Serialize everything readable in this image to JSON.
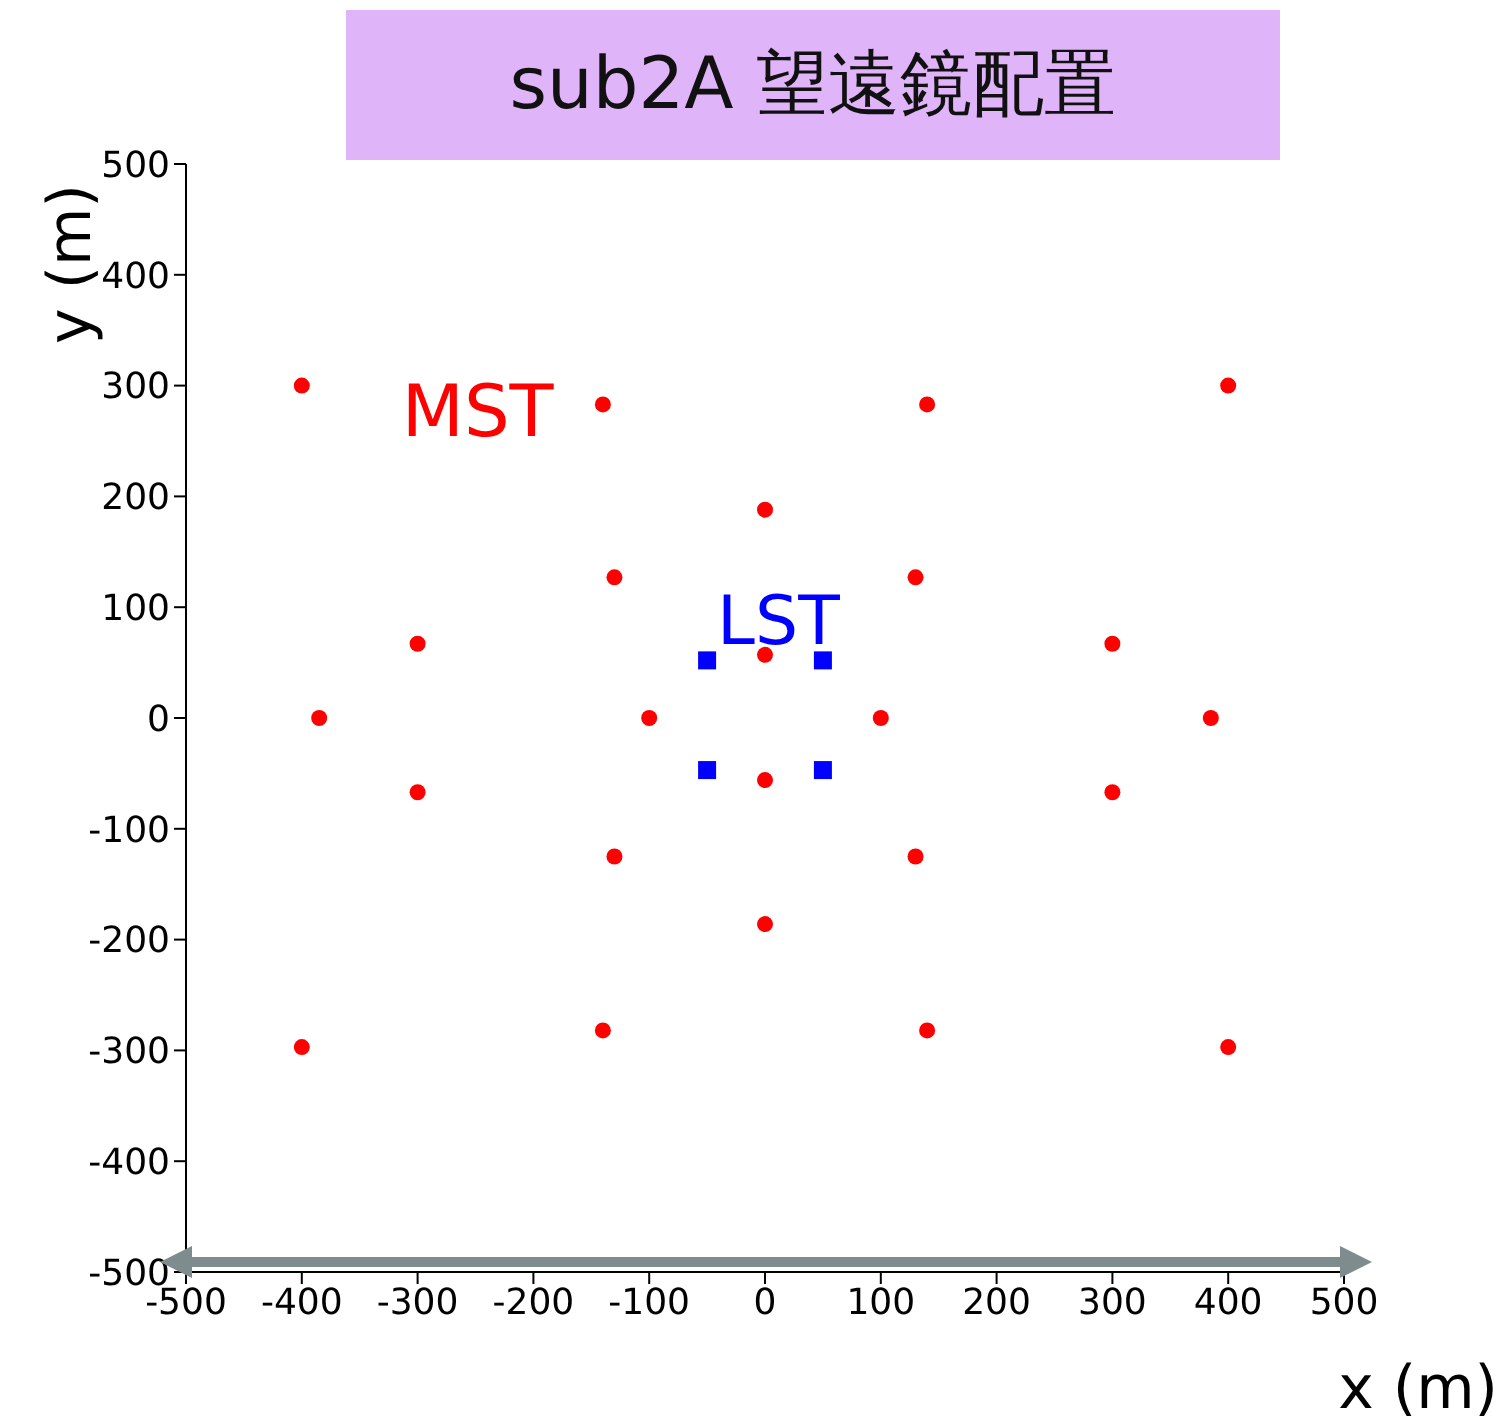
{
  "chart_data": {
    "type": "scatter",
    "title": "sub2A 望遠鏡配置",
    "xlabel": "x (m)",
    "ylabel": "y (m)",
    "xlim": [
      -500,
      500
    ],
    "ylim": [
      -500,
      500
    ],
    "xticks": [
      -500,
      -400,
      -300,
      -200,
      -100,
      0,
      100,
      200,
      300,
      400,
      500
    ],
    "yticks": [
      -500,
      -400,
      -300,
      -200,
      -100,
      0,
      100,
      200,
      300,
      400,
      500
    ],
    "grid": false,
    "legend": false,
    "series": [
      {
        "name": "MST",
        "color": "#ff0000",
        "marker": "circle",
        "x": [
          -400,
          400,
          -140,
          140,
          0,
          -130,
          130,
          -300,
          300,
          -385,
          385,
          -100,
          100,
          0,
          0,
          -300,
          300,
          -130,
          130,
          0,
          -140,
          140,
          -400,
          400
        ],
        "values": [
          300,
          300,
          283,
          283,
          188,
          127,
          127,
          67,
          67,
          0,
          0,
          0,
          0,
          57,
          -56,
          -67,
          -67,
          -125,
          -125,
          -186,
          -282,
          -282,
          -297,
          -297
        ]
      },
      {
        "name": "LST",
        "color": "#0000ff",
        "marker": "square",
        "x": [
          -50,
          50,
          -50,
          50
        ],
        "values": [
          52,
          52,
          -47,
          -47
        ]
      }
    ]
  }
}
